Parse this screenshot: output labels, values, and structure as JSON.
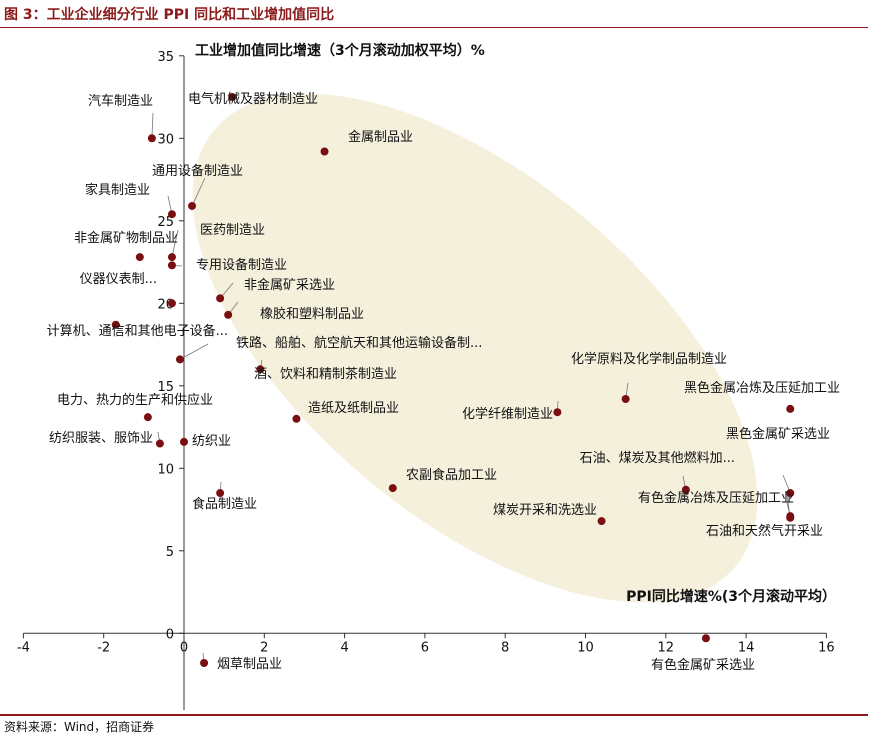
{
  "header": {
    "title": "图 3：工业企业细分行业 PPI 同比和工业增加值同比"
  },
  "footer": {
    "source": "资料来源：Wind，招商证券"
  },
  "colors": {
    "accent": "#8b1a1a",
    "point": "#7a0f12",
    "ellipse": "#f4f0dc",
    "axis": "#333333"
  },
  "chart_data": {
    "type": "scatter",
    "ylabel": "工业增加值同比增速（3个月滚动加权平均）%",
    "xlabel": "PPI同比增速%(3个月滚动平均）",
    "xlim": [
      -4,
      16
    ],
    "ylim": [
      -5,
      35
    ],
    "xticks": [
      "-4",
      "-2",
      "0",
      "2",
      "4",
      "6",
      "8",
      "10",
      "12",
      "14",
      "16"
    ],
    "yticks": [
      "35",
      "30",
      "25",
      "20",
      "15",
      "10",
      "5",
      "0",
      "-5"
    ],
    "points": [
      {
        "label": "汽车制造业",
        "x": -0.8,
        "y": 30.0
      },
      {
        "label": "电气机械及器材制造业",
        "x": 1.2,
        "y": 32.5
      },
      {
        "label": "金属制品业",
        "x": 3.5,
        "y": 29.2
      },
      {
        "label": "通用设备制造业",
        "x": 0.2,
        "y": 25.9
      },
      {
        "label": "家具制造业",
        "x": -0.3,
        "y": 25.4
      },
      {
        "label": "非金属矿物制品业",
        "x": -1.1,
        "y": 22.8
      },
      {
        "label": "医药制造业",
        "x": -0.3,
        "y": 22.8
      },
      {
        "label": "专用设备制造业",
        "x": -0.3,
        "y": 22.3
      },
      {
        "label": "非金属矿采选业",
        "x": 0.9,
        "y": 20.3
      },
      {
        "label": "仪器仪表制...",
        "x": -0.3,
        "y": 20.0
      },
      {
        "label": "橡胶和塑料制品业",
        "x": 1.1,
        "y": 19.3
      },
      {
        "label": "计算机、通信和其他电子设备...",
        "x": -1.7,
        "y": 18.7
      },
      {
        "label": "铁路、船舶、航空航天和其他运输设备制...",
        "x": -0.1,
        "y": 16.6
      },
      {
        "label": "酒、饮料和精制茶制造业",
        "x": 1.9,
        "y": 16.0
      },
      {
        "label": "化学原料及化学制品制造业",
        "x": 11.0,
        "y": 14.2
      },
      {
        "label": "黑色金属冶炼及压延加工业",
        "x": 15.1,
        "y": 13.6
      },
      {
        "label": "电力、热力的生产和供应业",
        "x": -0.9,
        "y": 13.1
      },
      {
        "label": "造纸及纸制品业",
        "x": 2.8,
        "y": 13.0
      },
      {
        "label": "化学纤维制造业",
        "x": 9.3,
        "y": 13.4
      },
      {
        "label": "纺织服装、服饰业",
        "x": -0.6,
        "y": 11.5
      },
      {
        "label": "纺织业",
        "x": 0.0,
        "y": 11.6
      },
      {
        "label": "黑色金属矿采选业",
        "x": 15.1,
        "y": 8.5
      },
      {
        "label": "石油、煤炭及其他燃料加...",
        "x": 12.5,
        "y": 8.7
      },
      {
        "label": "农副食品加工业",
        "x": 5.2,
        "y": 8.8
      },
      {
        "label": "食品制造业",
        "x": 0.9,
        "y": 8.5
      },
      {
        "label": "有色金属冶炼及压延加工业",
        "x": 15.1,
        "y": 7.0
      },
      {
        "label": "煤炭开采和洗选业",
        "x": 10.4,
        "y": 6.8
      },
      {
        "label": "石油和天然气开采业",
        "x": 15.1,
        "y": 7.1
      },
      {
        "label": "有色金属矿采选业",
        "x": 13.0,
        "y": -0.3
      },
      {
        "label": "烟草制品业",
        "x": 0.5,
        "y": -1.8
      }
    ]
  }
}
